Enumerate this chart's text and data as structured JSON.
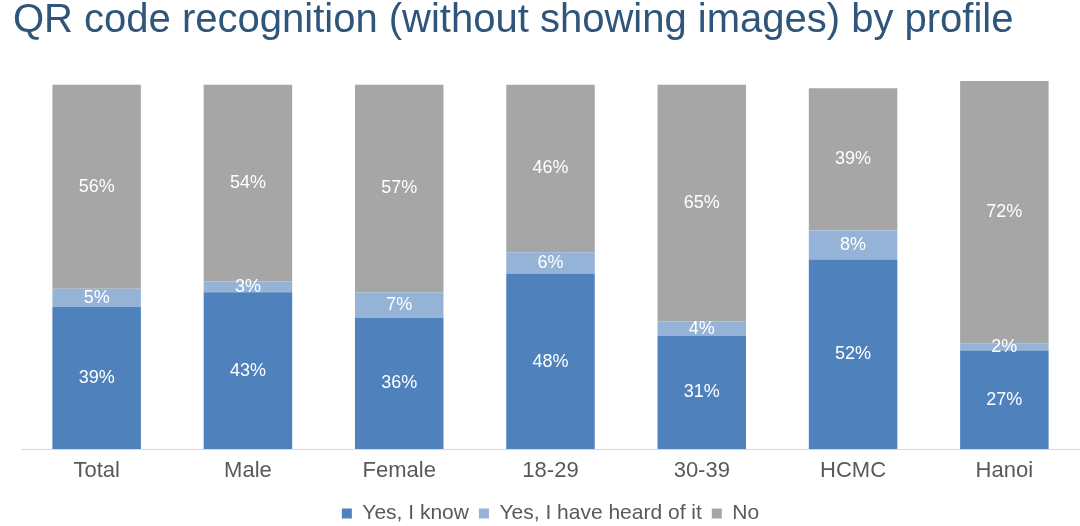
{
  "chart_data": {
    "type": "bar",
    "title": "QR code recognition (without showing images) by profile",
    "categories": [
      "Total",
      "Male",
      "Female",
      "18-29",
      "30-39",
      "HCMC",
      "Hanoi"
    ],
    "stacked": true,
    "series": [
      {
        "name": "Yes, I know",
        "color": "#4f81bd",
        "values": [
          39,
          43,
          36,
          48,
          31,
          52,
          27
        ],
        "value_labels": [
          "39%",
          "43%",
          "36%",
          "48%",
          "31%",
          "52%",
          "27%"
        ]
      },
      {
        "name": "Yes, I have heard of it",
        "color": "#95b3d7",
        "values": [
          5,
          3,
          7,
          6,
          4,
          8,
          2
        ],
        "value_labels": [
          "5%",
          "3%",
          "7%",
          "6%",
          "4%",
          "8%",
          "2%"
        ]
      },
      {
        "name": "No",
        "color": "#a6a6a6",
        "values": [
          56,
          54,
          57,
          46,
          65,
          39,
          72
        ],
        "value_labels": [
          "56%",
          "54%",
          "57%",
          "46%",
          "65%",
          "39%",
          "72%"
        ]
      }
    ],
    "legend": "bottom",
    "tick_labels": "x"
  }
}
